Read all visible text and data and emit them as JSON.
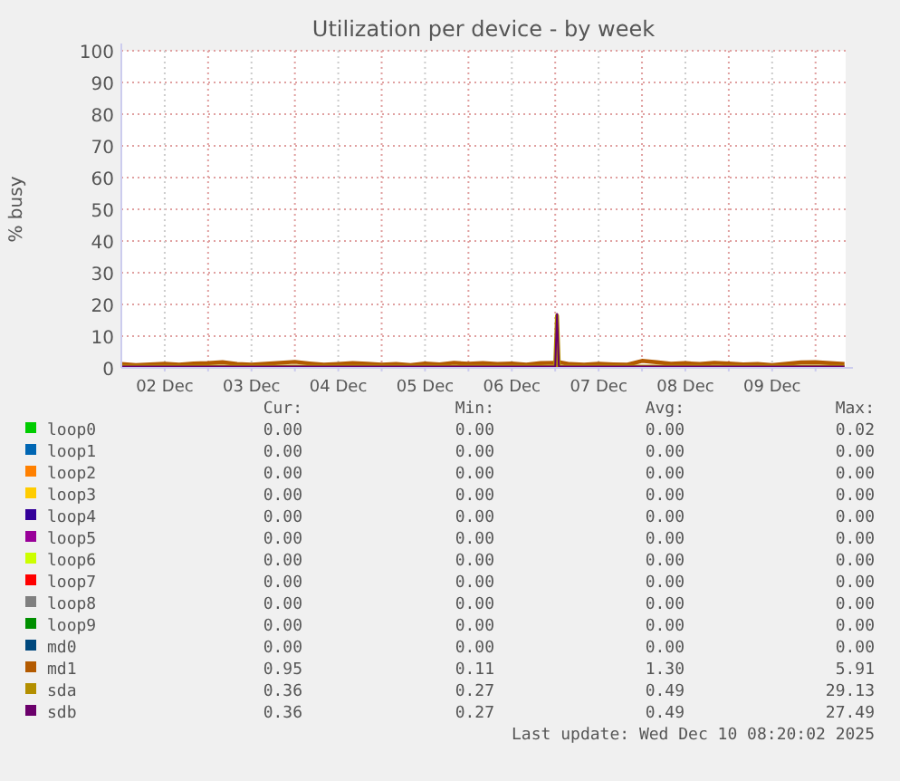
{
  "chart_data": {
    "type": "line",
    "title": "Utilization per device - by week",
    "ylabel": "% busy",
    "x": [
      "2025-12-02T00:00",
      "2025-12-02T04:00",
      "2025-12-02T08:00",
      "2025-12-02T12:00",
      "2025-12-02T16:00",
      "2025-12-02T20:00",
      "2025-12-03T00:00",
      "2025-12-03T04:00",
      "2025-12-03T08:00",
      "2025-12-03T12:00",
      "2025-12-03T16:00",
      "2025-12-03T20:00",
      "2025-12-04T00:00",
      "2025-12-04T04:00",
      "2025-12-04T08:00",
      "2025-12-04T12:00",
      "2025-12-04T16:00",
      "2025-12-04T20:00",
      "2025-12-05T00:00",
      "2025-12-05T04:00",
      "2025-12-05T08:00",
      "2025-12-05T12:00",
      "2025-12-05T16:00",
      "2025-12-05T20:00",
      "2025-12-06T00:00",
      "2025-12-06T04:00",
      "2025-12-06T08:00",
      "2025-12-06T12:00",
      "2025-12-06T16:00",
      "2025-12-06T20:00",
      "2025-12-07T00:00",
      "2025-12-07T00:30",
      "2025-12-07T01:00",
      "2025-12-07T04:00",
      "2025-12-07T08:00",
      "2025-12-07T12:00",
      "2025-12-07T16:00",
      "2025-12-07T20:00",
      "2025-12-08T00:00",
      "2025-12-08T04:00",
      "2025-12-08T08:00",
      "2025-12-08T12:00",
      "2025-12-08T16:00",
      "2025-12-08T20:00",
      "2025-12-09T00:00",
      "2025-12-09T04:00",
      "2025-12-09T08:00",
      "2025-12-09T12:00",
      "2025-12-09T16:00",
      "2025-12-09T20:00",
      "2025-12-10T00:00",
      "2025-12-10T04:00",
      "2025-12-10T08:00"
    ],
    "xlim": [
      "2025-12-02T00:00",
      "2025-12-10T08:20"
    ],
    "xticks": [
      {
        "value": "2025-12-02T12:00",
        "label": "02 Dec"
      },
      {
        "value": "2025-12-03T00:00",
        "label": null
      },
      {
        "value": "2025-12-03T12:00",
        "label": "03 Dec"
      },
      {
        "value": "2025-12-04T00:00",
        "label": null
      },
      {
        "value": "2025-12-04T12:00",
        "label": "04 Dec"
      },
      {
        "value": "2025-12-05T00:00",
        "label": null
      },
      {
        "value": "2025-12-05T12:00",
        "label": "05 Dec"
      },
      {
        "value": "2025-12-06T00:00",
        "label": null
      },
      {
        "value": "2025-12-06T12:00",
        "label": "06 Dec"
      },
      {
        "value": "2025-12-07T00:00",
        "label": null
      },
      {
        "value": "2025-12-07T12:00",
        "label": "07 Dec"
      },
      {
        "value": "2025-12-08T00:00",
        "label": null
      },
      {
        "value": "2025-12-08T12:00",
        "label": "08 Dec"
      },
      {
        "value": "2025-12-09T00:00",
        "label": null
      },
      {
        "value": "2025-12-09T12:00",
        "label": "09 Dec"
      },
      {
        "value": "2025-12-10T00:00",
        "label": null
      }
    ],
    "ylim": [
      0,
      100
    ],
    "yticks": [
      0,
      10,
      20,
      30,
      40,
      50,
      60,
      70,
      80,
      90,
      100
    ],
    "grid": true,
    "legend": "bottom",
    "marker": "none",
    "line_style": "solid",
    "series": [
      {
        "name": "loop0",
        "color": "#00cc00",
        "values": [
          null,
          null,
          null,
          null,
          null,
          null,
          null,
          null,
          null,
          null,
          null,
          null,
          null,
          null,
          null,
          null,
          null,
          null,
          null,
          null,
          null,
          null,
          null,
          null,
          null,
          null,
          null,
          null,
          null,
          null,
          null,
          null,
          null,
          null,
          null,
          null,
          null,
          null,
          null,
          null,
          null,
          null,
          null,
          null,
          null,
          null,
          null,
          null,
          null,
          null,
          null,
          null,
          null
        ]
      },
      {
        "name": "loop1",
        "color": "#0066b3",
        "values": [
          null,
          null,
          null,
          null,
          null,
          null,
          null,
          null,
          null,
          null,
          null,
          null,
          null,
          null,
          null,
          null,
          null,
          null,
          null,
          null,
          null,
          null,
          null,
          null,
          null,
          null,
          null,
          null,
          null,
          null,
          null,
          null,
          null,
          null,
          null,
          null,
          null,
          null,
          null,
          null,
          null,
          null,
          null,
          null,
          null,
          null,
          null,
          null,
          null,
          null,
          null,
          null,
          null
        ]
      },
      {
        "name": "loop2",
        "color": "#ff8000",
        "values": [
          null,
          null,
          null,
          null,
          null,
          null,
          null,
          null,
          null,
          null,
          null,
          null,
          null,
          null,
          null,
          null,
          null,
          null,
          null,
          null,
          null,
          null,
          null,
          null,
          null,
          null,
          null,
          null,
          null,
          null,
          null,
          null,
          null,
          null,
          null,
          null,
          null,
          null,
          null,
          null,
          null,
          null,
          null,
          null,
          null,
          null,
          null,
          null,
          null,
          null,
          null,
          null,
          null
        ]
      },
      {
        "name": "loop3",
        "color": "#ffcc00",
        "values": [
          null,
          null,
          null,
          null,
          null,
          null,
          null,
          null,
          null,
          null,
          null,
          null,
          null,
          null,
          null,
          null,
          null,
          null,
          null,
          null,
          null,
          null,
          null,
          null,
          null,
          null,
          null,
          null,
          null,
          null,
          null,
          null,
          null,
          null,
          null,
          null,
          null,
          null,
          null,
          null,
          null,
          null,
          null,
          null,
          null,
          null,
          null,
          null,
          null,
          null,
          null,
          null,
          null
        ]
      },
      {
        "name": "loop4",
        "color": "#330099",
        "values": [
          null,
          null,
          null,
          null,
          null,
          null,
          null,
          null,
          null,
          null,
          null,
          null,
          null,
          null,
          null,
          null,
          null,
          null,
          null,
          null,
          null,
          null,
          null,
          null,
          null,
          null,
          null,
          null,
          null,
          null,
          null,
          null,
          null,
          null,
          null,
          null,
          null,
          null,
          null,
          null,
          null,
          null,
          null,
          null,
          null,
          null,
          null,
          null,
          null,
          null,
          null,
          null,
          null
        ]
      },
      {
        "name": "loop5",
        "color": "#990099",
        "values": [
          null,
          null,
          null,
          null,
          null,
          null,
          null,
          null,
          null,
          null,
          null,
          null,
          null,
          null,
          null,
          null,
          null,
          null,
          null,
          null,
          null,
          null,
          null,
          null,
          null,
          null,
          null,
          null,
          null,
          null,
          null,
          null,
          null,
          null,
          null,
          null,
          null,
          null,
          null,
          null,
          null,
          null,
          null,
          null,
          null,
          null,
          null,
          null,
          null,
          null,
          null,
          null,
          null
        ]
      },
      {
        "name": "loop6",
        "color": "#ccff00",
        "values": [
          null,
          null,
          null,
          null,
          null,
          null,
          null,
          null,
          null,
          null,
          null,
          null,
          null,
          null,
          null,
          null,
          null,
          null,
          null,
          null,
          null,
          null,
          null,
          null,
          null,
          null,
          null,
          null,
          null,
          null,
          null,
          null,
          null,
          null,
          null,
          null,
          null,
          null,
          null,
          null,
          null,
          null,
          null,
          null,
          null,
          null,
          null,
          null,
          null,
          null,
          null,
          null,
          null
        ]
      },
      {
        "name": "loop7",
        "color": "#ff0000",
        "values": [
          null,
          null,
          null,
          null,
          null,
          null,
          null,
          null,
          null,
          null,
          null,
          null,
          null,
          null,
          null,
          null,
          null,
          null,
          null,
          null,
          null,
          null,
          null,
          null,
          null,
          null,
          null,
          null,
          null,
          null,
          null,
          null,
          null,
          null,
          null,
          null,
          null,
          null,
          null,
          null,
          null,
          null,
          null,
          null,
          null,
          null,
          null,
          null,
          null,
          null,
          null,
          null,
          null
        ]
      },
      {
        "name": "loop8",
        "color": "#808080",
        "values": [
          null,
          null,
          null,
          null,
          null,
          null,
          null,
          null,
          null,
          null,
          null,
          null,
          null,
          null,
          null,
          null,
          null,
          null,
          null,
          null,
          null,
          null,
          null,
          null,
          null,
          null,
          null,
          null,
          null,
          null,
          null,
          null,
          null,
          null,
          null,
          null,
          null,
          null,
          null,
          null,
          null,
          null,
          null,
          null,
          null,
          null,
          null,
          null,
          null,
          null,
          null,
          null,
          null
        ]
      },
      {
        "name": "loop9",
        "color": "#008f00",
        "values": [
          null,
          null,
          null,
          null,
          null,
          null,
          null,
          null,
          null,
          null,
          null,
          null,
          null,
          null,
          null,
          null,
          null,
          null,
          null,
          null,
          null,
          null,
          null,
          null,
          null,
          null,
          null,
          null,
          null,
          null,
          null,
          null,
          null,
          null,
          null,
          null,
          null,
          null,
          null,
          null,
          null,
          null,
          null,
          null,
          null,
          null,
          null,
          null,
          null,
          null,
          null,
          null,
          null
        ]
      },
      {
        "name": "md0",
        "color": "#00487d",
        "values": [
          null,
          null,
          null,
          null,
          null,
          null,
          null,
          null,
          null,
          null,
          null,
          null,
          null,
          null,
          null,
          null,
          null,
          null,
          null,
          null,
          null,
          null,
          null,
          null,
          null,
          null,
          null,
          null,
          null,
          null,
          null,
          null,
          null,
          null,
          null,
          null,
          null,
          null,
          null,
          null,
          null,
          null,
          null,
          null,
          null,
          null,
          null,
          null,
          null,
          null,
          null,
          null,
          null
        ]
      },
      {
        "name": "md1",
        "color": "#b35a00",
        "values": [
          1.2,
          0.9,
          1.1,
          1.3,
          1.0,
          1.4,
          1.5,
          1.8,
          1.2,
          1.0,
          1.3,
          1.6,
          1.9,
          1.4,
          1.0,
          1.2,
          1.5,
          1.3,
          1.0,
          1.2,
          0.9,
          1.4,
          1.1,
          1.6,
          1.3,
          1.5,
          1.2,
          1.4,
          1.0,
          1.5,
          1.6,
          1.4,
          1.8,
          1.2,
          1.0,
          1.3,
          1.1,
          1.0,
          2.2,
          1.8,
          1.3,
          1.5,
          1.2,
          1.6,
          1.4,
          1.1,
          1.2,
          0.9,
          1.3,
          1.7,
          1.8,
          1.5,
          1.2
        ]
      },
      {
        "name": "sda",
        "color": "#b38f00",
        "values": [
          0.4,
          0.4,
          0.4,
          0.4,
          0.4,
          0.4,
          0.4,
          0.4,
          0.4,
          0.4,
          0.4,
          0.4,
          0.4,
          0.4,
          0.4,
          0.4,
          0.4,
          0.4,
          0.4,
          0.4,
          0.4,
          0.4,
          0.4,
          0.4,
          0.4,
          0.4,
          0.4,
          0.4,
          0.4,
          0.4,
          0.4,
          16.5,
          0.4,
          0.4,
          0.4,
          0.4,
          0.4,
          0.4,
          0.4,
          0.4,
          0.4,
          0.4,
          0.4,
          0.4,
          0.4,
          0.4,
          0.4,
          0.4,
          0.4,
          0.4,
          0.4,
          0.4,
          0.4
        ]
      },
      {
        "name": "sdb",
        "color": "#6b006b",
        "values": [
          0.4,
          0.4,
          0.4,
          0.4,
          0.4,
          0.4,
          0.4,
          0.4,
          0.4,
          0.4,
          0.4,
          0.4,
          0.4,
          0.4,
          0.4,
          0.4,
          0.4,
          0.4,
          0.4,
          0.4,
          0.4,
          0.4,
          0.4,
          0.4,
          0.4,
          0.4,
          0.4,
          0.4,
          0.4,
          0.4,
          0.4,
          17,
          0.4,
          0.4,
          0.4,
          0.4,
          0.4,
          0.4,
          0.4,
          0.4,
          0.4,
          0.4,
          0.4,
          0.4,
          0.4,
          0.4,
          0.4,
          0.4,
          0.4,
          0.4,
          0.4,
          0.4,
          0.4
        ]
      }
    ],
    "annotations": [
      "Cur:",
      "Min:",
      "Avg:",
      "Max:",
      "0.00",
      "0.00",
      "0.00",
      "0.02",
      "0.00",
      "0.00",
      "0.00",
      "0.00",
      "0.00",
      "0.00",
      "0.00",
      "0.00",
      "0.00",
      "0.00",
      "0.00",
      "0.00",
      "0.00",
      "0.00",
      "0.00",
      "0.00",
      "0.00",
      "0.00",
      "0.00",
      "0.00",
      "0.00",
      "0.00",
      "0.00",
      "0.00",
      "0.00",
      "0.00",
      "0.00",
      "0.00",
      "0.00",
      "0.00",
      "0.00",
      "0.00",
      "0.00",
      "0.00",
      "0.00",
      "0.00",
      "0.00",
      "0.00",
      "0.00",
      "0.00",
      "0.95",
      "0.11",
      "1.30",
      "5.91",
      "0.36",
      "0.27",
      "0.49",
      "29.13",
      "0.36",
      "0.27",
      "0.49",
      "27.49",
      "Last update: Wed Dec 10 08:20:02 2025"
    ]
  }
}
